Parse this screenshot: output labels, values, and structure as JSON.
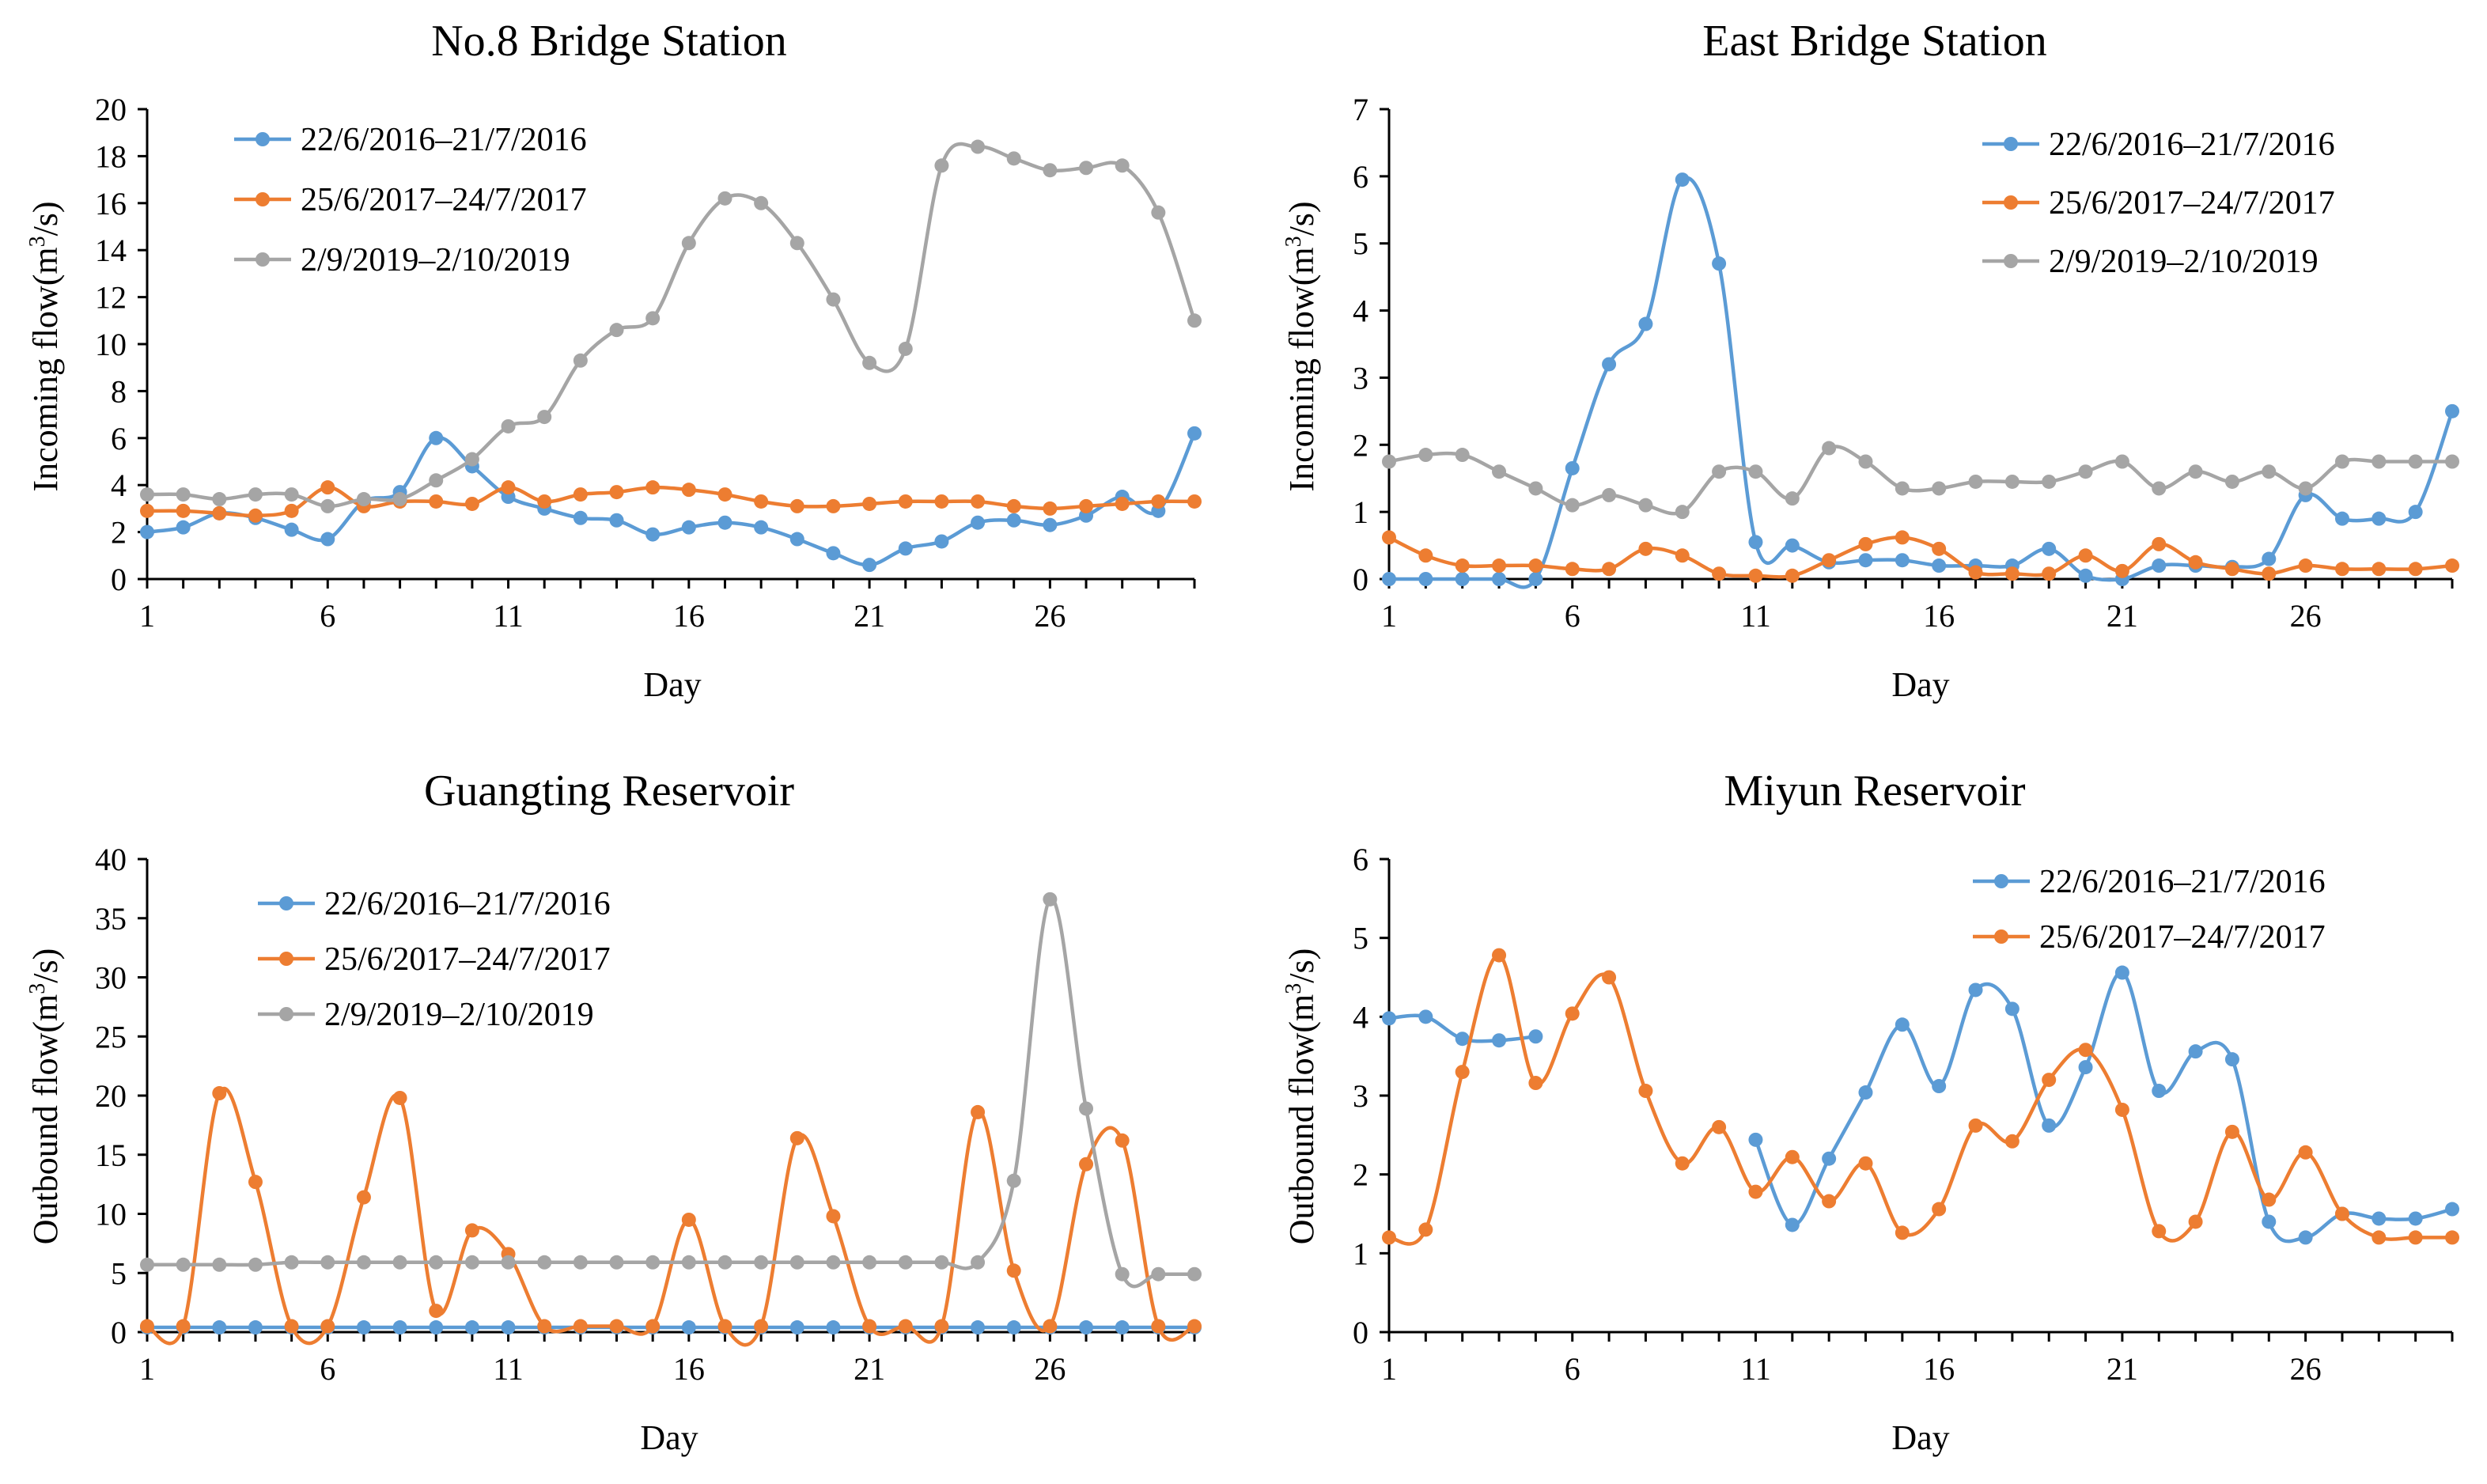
{
  "figure": {
    "colors": {
      "s2016": "#5B9BD5",
      "s2017": "#ED7D31",
      "s2019": "#A5A5A5",
      "axis": "#000000"
    }
  },
  "chart_data": [
    {
      "type": "line",
      "title": "No.8 Bridge Station",
      "xlabel": "Day",
      "ylabel": "Incoming flow(m³/s)",
      "ylabel_parts": {
        "pre": "Incoming flow(m",
        "sup": "3",
        "post": "/s)"
      },
      "x": [
        1,
        2,
        3,
        4,
        5,
        6,
        7,
        8,
        9,
        10,
        11,
        12,
        13,
        14,
        15,
        16,
        17,
        18,
        19,
        20,
        21,
        22,
        23,
        24,
        25,
        26,
        27,
        28,
        29,
        30
      ],
      "xlim": [
        1,
        30
      ],
      "xticks": [
        1,
        6,
        11,
        16,
        21,
        26
      ],
      "ylim": [
        0,
        20
      ],
      "yticks": [
        0,
        2,
        4,
        6,
        8,
        10,
        12,
        14,
        16,
        18,
        20
      ],
      "legend_position": "top-left",
      "series": [
        {
          "name": "22/6/2016–21/7/2016",
          "color": "#5B9BD5",
          "values": [
            2.0,
            2.2,
            2.8,
            2.6,
            2.1,
            1.7,
            3.3,
            3.7,
            6.0,
            4.8,
            3.5,
            3.0,
            2.6,
            2.5,
            1.9,
            2.2,
            2.4,
            2.2,
            1.7,
            1.1,
            0.6,
            1.3,
            1.6,
            2.4,
            2.5,
            2.3,
            2.7,
            3.5,
            2.9,
            6.2
          ]
        },
        {
          "name": "25/6/2017–24/7/2017",
          "color": "#ED7D31",
          "values": [
            2.9,
            2.9,
            2.8,
            2.7,
            2.9,
            3.9,
            3.1,
            3.3,
            3.3,
            3.2,
            3.9,
            3.3,
            3.6,
            3.7,
            3.9,
            3.8,
            3.6,
            3.3,
            3.1,
            3.1,
            3.2,
            3.3,
            3.3,
            3.3,
            3.1,
            3.0,
            3.1,
            3.2,
            3.3,
            3.3
          ]
        },
        {
          "name": "2/9/2019–2/10/2019",
          "color": "#A5A5A5",
          "values": [
            3.6,
            3.6,
            3.4,
            3.6,
            3.6,
            3.1,
            3.4,
            3.4,
            4.2,
            5.1,
            6.5,
            6.9,
            9.3,
            10.6,
            11.1,
            14.3,
            16.2,
            16.0,
            14.3,
            11.9,
            9.2,
            9.8,
            17.6,
            18.4,
            17.9,
            17.4,
            17.5,
            17.6,
            15.6,
            11.0
          ]
        }
      ]
    },
    {
      "type": "line",
      "title": "East Bridge Station",
      "xlabel": "Day",
      "ylabel": "Incoming flow(m³/s)",
      "ylabel_parts": {
        "pre": "Incoming flow(m",
        "sup": "3",
        "post": "/s)"
      },
      "x": [
        1,
        2,
        3,
        4,
        5,
        6,
        7,
        8,
        9,
        10,
        11,
        12,
        13,
        14,
        15,
        16,
        17,
        18,
        19,
        20,
        21,
        22,
        23,
        24,
        25,
        26,
        27,
        28,
        29,
        30
      ],
      "xlim": [
        1,
        30
      ],
      "xticks": [
        1,
        6,
        11,
        16,
        21,
        26
      ],
      "ylim": [
        0,
        7
      ],
      "yticks": [
        0,
        1,
        2,
        3,
        4,
        5,
        6,
        7
      ],
      "legend_position": "top-right",
      "series": [
        {
          "name": "22/6/2016–21/7/2016",
          "color": "#5B9BD5",
          "values": [
            0.0,
            0.0,
            0.0,
            0.0,
            0.0,
            1.65,
            3.2,
            3.8,
            5.95,
            4.7,
            0.55,
            0.5,
            0.25,
            0.28,
            0.28,
            0.2,
            0.2,
            0.2,
            0.45,
            0.05,
            0.0,
            0.2,
            0.2,
            0.18,
            0.3,
            1.25,
            0.9,
            0.9,
            1.0,
            2.5
          ]
        },
        {
          "name": "25/6/2017–24/7/2017",
          "color": "#ED7D31",
          "values": [
            0.62,
            0.35,
            0.2,
            0.2,
            0.2,
            0.15,
            0.15,
            0.45,
            0.35,
            0.08,
            0.05,
            0.05,
            0.28,
            0.52,
            0.62,
            0.45,
            0.1,
            0.08,
            0.08,
            0.35,
            0.12,
            0.52,
            0.25,
            0.15,
            0.08,
            0.2,
            0.15,
            0.15,
            0.15,
            0.2
          ]
        },
        {
          "name": "2/9/2019–2/10/2019",
          "color": "#A5A5A5",
          "values": [
            1.75,
            1.85,
            1.85,
            1.6,
            1.35,
            1.1,
            1.25,
            1.1,
            1.0,
            1.6,
            1.6,
            1.2,
            1.95,
            1.75,
            1.35,
            1.35,
            1.45,
            1.45,
            1.45,
            1.6,
            1.75,
            1.35,
            1.6,
            1.45,
            1.6,
            1.35,
            1.75,
            1.75,
            1.75,
            1.75
          ]
        }
      ]
    },
    {
      "type": "line",
      "title": "Guangting Reservoir",
      "xlabel": "Day",
      "ylabel": "Outbound flow(m³/s)",
      "ylabel_parts": {
        "pre": "Outbound flow(m",
        "sup": "3",
        "post": "/s)"
      },
      "x": [
        1,
        2,
        3,
        4,
        5,
        6,
        7,
        8,
        9,
        10,
        11,
        12,
        13,
        14,
        15,
        16,
        17,
        18,
        19,
        20,
        21,
        22,
        23,
        24,
        25,
        26,
        27,
        28,
        29,
        30
      ],
      "xlim": [
        1,
        30
      ],
      "xticks": [
        1,
        6,
        11,
        16,
        21,
        26
      ],
      "ylim": [
        0,
        40
      ],
      "yticks": [
        0,
        5,
        10,
        15,
        20,
        25,
        30,
        35,
        40
      ],
      "legend_position": "top-left",
      "series": [
        {
          "name": "22/6/2016–21/7/2016",
          "color": "#5B9BD5",
          "values": [
            0.4,
            0.4,
            0.4,
            0.4,
            0.4,
            0.4,
            0.4,
            0.4,
            0.4,
            0.4,
            0.4,
            0.4,
            0.4,
            0.4,
            0.4,
            0.4,
            0.4,
            0.4,
            0.4,
            0.4,
            0.4,
            0.4,
            0.4,
            0.4,
            0.4,
            0.4,
            0.4,
            0.4,
            0.4,
            0.4
          ]
        },
        {
          "name": "25/6/2017–24/7/2017",
          "color": "#ED7D31",
          "values": [
            0.5,
            0.5,
            20.2,
            12.7,
            0.5,
            0.5,
            11.4,
            19.8,
            1.8,
            8.6,
            6.6,
            0.5,
            0.5,
            0.5,
            0.5,
            9.5,
            0.5,
            0.5,
            16.4,
            9.8,
            0.5,
            0.5,
            0.5,
            18.6,
            5.2,
            0.5,
            14.2,
            16.2,
            0.5,
            0.5
          ]
        },
        {
          "name": "2/9/2019–2/10/2019",
          "color": "#A5A5A5",
          "values": [
            5.7,
            5.7,
            5.7,
            5.7,
            5.9,
            5.9,
            5.9,
            5.9,
            5.9,
            5.9,
            5.9,
            5.9,
            5.9,
            5.9,
            5.9,
            5.9,
            5.9,
            5.9,
            5.9,
            5.9,
            5.9,
            5.9,
            5.9,
            5.9,
            12.8,
            36.6,
            18.9,
            4.9,
            4.9,
            4.9
          ]
        }
      ]
    },
    {
      "type": "line",
      "title": "Miyun Reservoir",
      "xlabel": "Day",
      "ylabel": "Outbound flow(m³/s)",
      "ylabel_parts": {
        "pre": "Outbound flow(m",
        "sup": "3",
        "post": "/s)"
      },
      "x": [
        1,
        2,
        3,
        4,
        5,
        6,
        7,
        8,
        9,
        10,
        11,
        12,
        13,
        14,
        15,
        16,
        17,
        18,
        19,
        20,
        21,
        22,
        23,
        24,
        25,
        26,
        27,
        28,
        29,
        30
      ],
      "xlim": [
        1,
        30
      ],
      "xticks": [
        1,
        6,
        11,
        16,
        21,
        26
      ],
      "ylim": [
        0,
        6
      ],
      "yticks": [
        0,
        1,
        2,
        3,
        4,
        5,
        6
      ],
      "legend_position": "top-right",
      "series": [
        {
          "name": "22/6/2016–21/7/2016",
          "color": "#5B9BD5",
          "values": [
            3.98,
            4.0,
            3.72,
            3.7,
            3.75,
            null,
            null,
            null,
            null,
            null,
            2.44,
            1.36,
            2.2,
            3.04,
            3.9,
            3.12,
            4.34,
            4.1,
            2.62,
            3.36,
            4.56,
            3.06,
            3.56,
            3.46,
            1.4,
            1.2,
            1.5,
            1.44,
            1.44,
            1.56
          ]
        },
        {
          "name": "25/6/2017–24/7/2017",
          "color": "#ED7D31",
          "values": [
            1.2,
            1.3,
            3.3,
            4.78,
            3.16,
            4.04,
            4.5,
            3.06,
            2.14,
            2.6,
            1.78,
            2.22,
            1.66,
            2.14,
            1.26,
            1.56,
            2.62,
            2.42,
            3.2,
            3.58,
            2.82,
            1.28,
            1.4,
            2.54,
            1.68,
            2.28,
            1.5,
            1.2,
            1.2,
            1.2
          ]
        }
      ]
    }
  ]
}
